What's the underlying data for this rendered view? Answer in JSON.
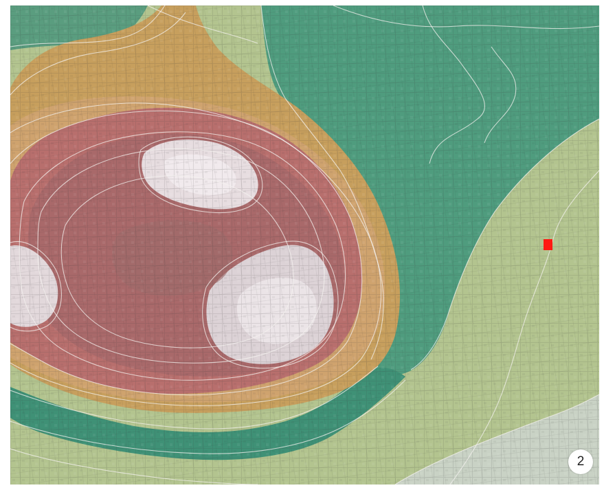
{
  "figure": {
    "panel_number": "2"
  },
  "map": {
    "marker_color": "#ff1a12",
    "contour_line_color": "#f4f1ef",
    "elevation_colors": {
      "lowest": "#3f9176",
      "low": "#b7c892",
      "mid": "#c99a55",
      "high": "#b66f6c",
      "peak": "#e7dde0"
    }
  }
}
